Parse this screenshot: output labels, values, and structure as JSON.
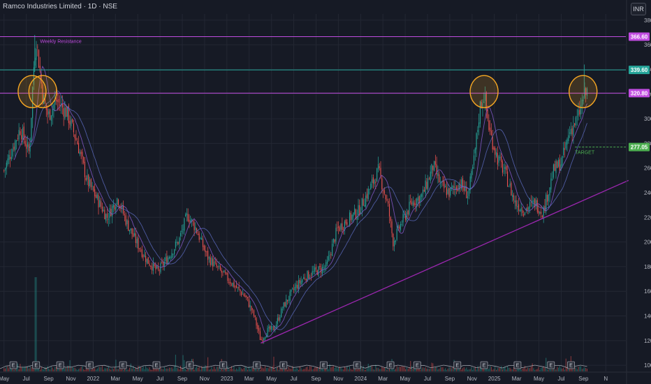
{
  "header": {
    "title": "Ramco Industries Limited · 1D · NSE",
    "currency_button": "INR"
  },
  "colors": {
    "background": "#161a25",
    "grid": "#232733",
    "axis_text": "#b2b5be",
    "candle_up": "#26a69a",
    "candle_down": "#ef5350",
    "moving_average": "#7e57c2",
    "resistance": "#c04ce0",
    "resistance_upper": "#26a69a",
    "trendline": "#9c27b0",
    "circle": "#f5a623",
    "target": "#4caf50",
    "volume_line": "#d1d4dc"
  },
  "chart_data": {
    "type": "candlestick",
    "ylim": [
      95,
      385
    ],
    "y_ticks": [
      100,
      120,
      140,
      160,
      180,
      200,
      220,
      240,
      260,
      280,
      300,
      320,
      340,
      360,
      380
    ],
    "x_ticks": [
      "May",
      "Jul",
      "Sep",
      "Nov",
      "2022",
      "Mar",
      "May",
      "Jul",
      "Sep",
      "Nov",
      "2023",
      "Mar",
      "May",
      "Jul",
      "Sep",
      "Nov",
      "2024",
      "Mar",
      "May",
      "Jul",
      "Sep",
      "Nov",
      "2025",
      "Mar",
      "May",
      "Jul",
      "Sep",
      "N"
    ],
    "price_path": [
      [
        2021.33,
        258
      ],
      [
        2021.45,
        292
      ],
      [
        2021.52,
        272
      ],
      [
        2021.55,
        338
      ],
      [
        2021.57,
        366
      ],
      [
        2021.62,
        318
      ],
      [
        2021.66,
        302
      ],
      [
        2021.72,
        315
      ],
      [
        2021.8,
        305
      ],
      [
        2021.88,
        280
      ],
      [
        2021.95,
        250
      ],
      [
        2022.0,
        240
      ],
      [
        2022.1,
        220
      ],
      [
        2022.18,
        236
      ],
      [
        2022.25,
        215
      ],
      [
        2022.32,
        200
      ],
      [
        2022.4,
        185
      ],
      [
        2022.48,
        176
      ],
      [
        2022.56,
        188
      ],
      [
        2022.64,
        202
      ],
      [
        2022.7,
        222
      ],
      [
        2022.76,
        212
      ],
      [
        2022.85,
        188
      ],
      [
        2022.95,
        176
      ],
      [
        2023.05,
        165
      ],
      [
        2023.14,
        155
      ],
      [
        2023.2,
        140
      ],
      [
        2023.25,
        120
      ],
      [
        2023.3,
        128
      ],
      [
        2023.35,
        130
      ],
      [
        2023.42,
        148
      ],
      [
        2023.5,
        162
      ],
      [
        2023.58,
        172
      ],
      [
        2023.66,
        176
      ],
      [
        2023.74,
        180
      ],
      [
        2023.82,
        210
      ],
      [
        2023.9,
        218
      ],
      [
        2023.98,
        225
      ],
      [
        2024.05,
        240
      ],
      [
        2024.13,
        258
      ],
      [
        2024.2,
        230
      ],
      [
        2024.24,
        200
      ],
      [
        2024.3,
        215
      ],
      [
        2024.38,
        232
      ],
      [
        2024.46,
        238
      ],
      [
        2024.54,
        262
      ],
      [
        2024.6,
        245
      ],
      [
        2024.66,
        240
      ],
      [
        2024.74,
        248
      ],
      [
        2024.8,
        238
      ],
      [
        2024.84,
        262
      ],
      [
        2024.89,
        310
      ],
      [
        2024.92,
        320
      ],
      [
        2024.96,
        290
      ],
      [
        2025.02,
        268
      ],
      [
        2025.08,
        255
      ],
      [
        2025.15,
        232
      ],
      [
        2025.22,
        226
      ],
      [
        2025.3,
        232
      ],
      [
        2025.36,
        224
      ],
      [
        2025.44,
        258
      ],
      [
        2025.5,
        265
      ],
      [
        2025.56,
        290
      ],
      [
        2025.62,
        300
      ],
      [
        2025.66,
        316
      ],
      [
        2025.69,
        322
      ]
    ],
    "horizontal_levels": [
      {
        "label": "366.60",
        "value": 366.6,
        "color": "#c04ce0"
      },
      {
        "label": "339.60",
        "value": 339.6,
        "color": "#26a69a"
      },
      {
        "label": "320.80",
        "value": 320.8,
        "color": "#c04ce0"
      },
      {
        "label": "277.05",
        "value": 277.05,
        "color": "#4caf50"
      }
    ],
    "annotations": {
      "resistance_text": "Weekly Resistance",
      "target_text": "TARGET"
    },
    "trendline": {
      "from": [
        2023.25,
        118
      ],
      "to": [
        2026.0,
        250
      ]
    },
    "circles_at": [
      [
        2021.54,
        322
      ],
      [
        2021.62,
        322
      ],
      [
        2024.92,
        322
      ],
      [
        2025.66,
        322
      ]
    ],
    "earnings_markers": [
      2021.4,
      2021.57,
      2021.75,
      2021.97,
      2022.22,
      2022.47,
      2022.72,
      2022.97,
      2023.22,
      2023.42,
      2023.72,
      2023.97,
      2024.22,
      2024.42,
      2024.72,
      2024.92,
      2025.17,
      2025.42,
      2025.57
    ],
    "earnings_label": "E",
    "x_range": [
      2021.3,
      2025.98
    ]
  }
}
